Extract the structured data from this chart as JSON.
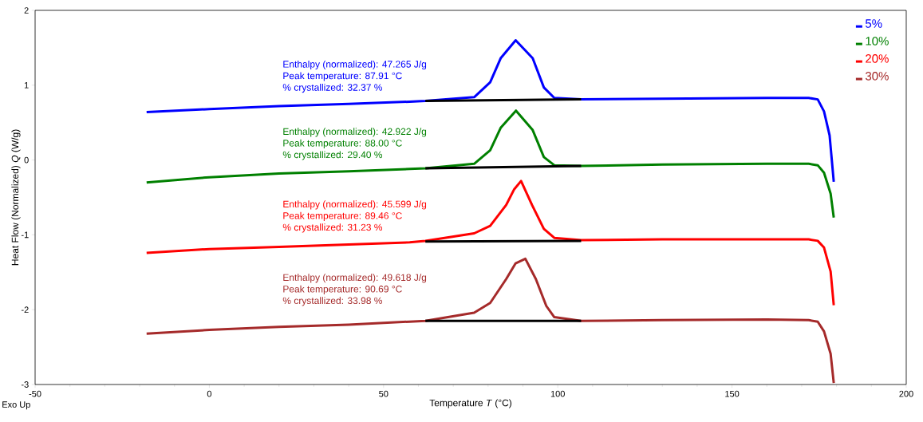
{
  "chart_data": {
    "type": "line",
    "xlabel": "Temperature *T* (°C)",
    "ylabel": "Heat Flow (Normalized) *Q* (W/g)",
    "xlim": [
      -50,
      200
    ],
    "xticks": [
      -50,
      0,
      50,
      100,
      150,
      200
    ],
    "ylim": [
      -3,
      2
    ],
    "yticks": [
      -3,
      -2,
      -1,
      0,
      1,
      2
    ],
    "legend": "top right",
    "marker": "none",
    "line_style": "solid",
    "series": [
      {
        "name": "5%",
        "color": "#0000ff",
        "x": [
          -18,
          0,
          20,
          40,
          57.5,
          62,
          76,
          80.6,
          83.6,
          87.91,
          92.8,
          96,
          99,
          106.7,
          130,
          160,
          172,
          174.6,
          176.4,
          178,
          179.2
        ],
        "values": [
          0.64,
          0.68,
          0.72,
          0.75,
          0.78,
          0.79,
          0.84,
          1.04,
          1.36,
          1.6,
          1.36,
          0.97,
          0.83,
          0.81,
          0.82,
          0.83,
          0.83,
          0.81,
          0.65,
          0.33,
          -0.29
        ]
      },
      {
        "name": "10%",
        "color": "#008000",
        "x": [
          -18,
          0,
          20,
          40,
          57.5,
          62,
          76,
          80.6,
          83.6,
          88.0,
          92.8,
          96,
          99,
          106.7,
          130,
          160,
          172,
          174.6,
          176.4,
          178.3,
          179.2
        ],
        "values": [
          -0.3,
          -0.23,
          -0.18,
          -0.15,
          -0.12,
          -0.11,
          -0.05,
          0.13,
          0.43,
          0.66,
          0.4,
          0.04,
          -0.07,
          -0.08,
          -0.06,
          -0.05,
          -0.05,
          -0.07,
          -0.17,
          -0.45,
          -0.77
        ]
      },
      {
        "name": "20%",
        "color": "#ff0000",
        "x": [
          -18,
          0,
          20,
          40,
          57.5,
          62,
          76,
          80.6,
          85.2,
          87.5,
          89.46,
          92.6,
          96,
          99,
          106.7,
          130,
          160,
          172,
          174.6,
          176.4,
          178.3,
          179.2
        ],
        "values": [
          -1.24,
          -1.19,
          -1.16,
          -1.13,
          -1.1,
          -1.08,
          -0.98,
          -0.88,
          -0.6,
          -0.39,
          -0.28,
          -0.6,
          -0.92,
          -1.04,
          -1.07,
          -1.06,
          -1.06,
          -1.06,
          -1.08,
          -1.17,
          -1.49,
          -1.94
        ]
      },
      {
        "name": "30%",
        "color": "#a52a2a",
        "x": [
          -18,
          0,
          20,
          40,
          57.5,
          62,
          76,
          80.6,
          85.2,
          87.9,
          90.69,
          93.7,
          96.7,
          99,
          106.7,
          130,
          160,
          172,
          174.6,
          176.4,
          178.3,
          179.2
        ],
        "values": [
          -2.32,
          -2.27,
          -2.23,
          -2.2,
          -2.16,
          -2.15,
          -2.04,
          -1.91,
          -1.59,
          -1.38,
          -1.32,
          -1.59,
          -1.95,
          -2.1,
          -2.15,
          -2.14,
          -2.13,
          -2.14,
          -2.16,
          -2.29,
          -2.59,
          -2.98
        ]
      },
      {
        "color": "#000000",
        "x": [
          62,
          106.7
        ],
        "values": [
          0.79,
          0.81
        ]
      },
      {
        "color": "#000000",
        "x": [
          62,
          106.7
        ],
        "values": [
          -0.11,
          -0.08
        ]
      },
      {
        "color": "#000000",
        "x": [
          62,
          106.7
        ],
        "values": [
          -1.09,
          -1.08
        ]
      },
      {
        "color": "#000000",
        "x": [
          62,
          106.7
        ],
        "values": [
          -2.15,
          -2.15
        ]
      }
    ],
    "annotations": [
      "Enthalpy (normalized): 47.265 J/g",
      "Peak temperature: 87.91 °C",
      "% crystallized: 32.37 %",
      "Enthalpy (normalized): 42.922 J/g",
      "Peak temperature: 88.00 °C",
      "% crystallized: 29.40 %",
      "Enthalpy (normalized): 45.599 J/g",
      "Peak temperature: 89.46 °C",
      "% crystallized: 31.23 %",
      "Enthalpy (normalized): 49.618 J/g",
      "Peak temperature: 90.69 °C",
      "% crystallized: 33.98 %",
      "Exo Up"
    ]
  }
}
